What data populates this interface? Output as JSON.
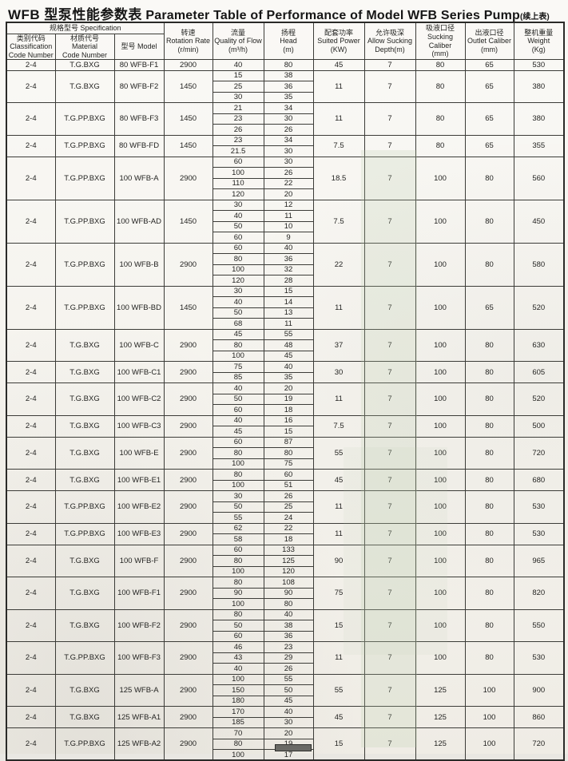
{
  "title": {
    "cn": "WFB 型泵性能参数表",
    "en": "Parameter Table of Performance of Model WFB Series Pump",
    "suffix": "(续上表)"
  },
  "table": {
    "spec_group": {
      "cn": "规格型号",
      "en": "Specification"
    },
    "columns": [
      {
        "lines": [
          "类别代码",
          "Classification",
          "Code Number"
        ]
      },
      {
        "lines": [
          "材质代号",
          "Material",
          "Code Number"
        ]
      },
      {
        "lines": [
          "型号 Model"
        ]
      },
      {
        "lines": [
          "转速",
          "Rotation Rate",
          "(r/min)"
        ]
      },
      {
        "lines": [
          "流量",
          "Quality of Flow",
          "(m³/h)"
        ]
      },
      {
        "lines": [
          "扬程",
          "Head",
          "(m)"
        ]
      },
      {
        "lines": [
          "配套功率",
          "Suited Power",
          "(KW)"
        ]
      },
      {
        "lines": [
          "允许吸深",
          "Allow Sucking",
          "Depth(m)"
        ]
      },
      {
        "lines": [
          "吸液口径",
          "Sucking Caliber",
          "(mm)"
        ]
      },
      {
        "lines": [
          "出液口径",
          "Outlet Caliber",
          "(mm)"
        ]
      },
      {
        "lines": [
          "整机重量",
          "Weight",
          "(Kg)"
        ]
      }
    ],
    "rows": [
      {
        "cls": "2-4",
        "mat": "T.G.BXG",
        "model": "80 WFB-F1",
        "rpm": "2900",
        "points": [
          [
            "40",
            "80"
          ]
        ],
        "kw": "45",
        "depth": "7",
        "suck": "80",
        "outlet": "65",
        "kg": "530"
      },
      {
        "cls": "2-4",
        "mat": "T.G.BXG",
        "model": "80 WFB-F2",
        "rpm": "1450",
        "points": [
          [
            "15",
            "38"
          ],
          [
            "25",
            "36"
          ],
          [
            "30",
            "35"
          ]
        ],
        "kw": "11",
        "depth": "7",
        "suck": "80",
        "outlet": "65",
        "kg": "380"
      },
      {
        "cls": "2-4",
        "mat": "T.G.PP.BXG",
        "model": "80 WFB-F3",
        "rpm": "1450",
        "points": [
          [
            "21",
            "34"
          ],
          [
            "23",
            "30"
          ],
          [
            "26",
            "26"
          ]
        ],
        "kw": "11",
        "depth": "7",
        "suck": "80",
        "outlet": "65",
        "kg": "380"
      },
      {
        "cls": "2-4",
        "mat": "T.G.PP.BXG",
        "model": "80 WFB-FD",
        "rpm": "1450",
        "points": [
          [
            "23",
            "34"
          ],
          [
            "21.5",
            "30"
          ]
        ],
        "kw": "7.5",
        "depth": "7",
        "suck": "80",
        "outlet": "65",
        "kg": "355"
      },
      {
        "cls": "2-4",
        "mat": "T.G.PP.BXG",
        "model": "100 WFB-A",
        "rpm": "2900",
        "points": [
          [
            "60",
            "30"
          ],
          [
            "100",
            "26"
          ],
          [
            "110",
            "22"
          ],
          [
            "120",
            "20"
          ]
        ],
        "kw": "18.5",
        "depth": "7",
        "suck": "100",
        "outlet": "80",
        "kg": "560"
      },
      {
        "cls": "2-4",
        "mat": "T.G.PP.BXG",
        "model": "100 WFB-AD",
        "rpm": "1450",
        "points": [
          [
            "30",
            "12"
          ],
          [
            "40",
            "11"
          ],
          [
            "50",
            "10"
          ],
          [
            "60",
            "9"
          ]
        ],
        "kw": "7.5",
        "depth": "7",
        "suck": "100",
        "outlet": "80",
        "kg": "450"
      },
      {
        "cls": "2-4",
        "mat": "T.G.PP.BXG",
        "model": "100 WFB-B",
        "rpm": "2900",
        "points": [
          [
            "60",
            "40"
          ],
          [
            "80",
            "36"
          ],
          [
            "100",
            "32"
          ],
          [
            "120",
            "28"
          ]
        ],
        "kw": "22",
        "depth": "7",
        "suck": "100",
        "outlet": "80",
        "kg": "580"
      },
      {
        "cls": "2-4",
        "mat": "T.G.PP.BXG",
        "model": "100 WFB-BD",
        "rpm": "1450",
        "points": [
          [
            "30",
            "15"
          ],
          [
            "40",
            "14"
          ],
          [
            "50",
            "13"
          ],
          [
            "68",
            "11"
          ]
        ],
        "kw": "11",
        "depth": "7",
        "suck": "100",
        "outlet": "65",
        "kg": "520"
      },
      {
        "cls": "2-4",
        "mat": "T.G.BXG",
        "model": "100 WFB-C",
        "rpm": "2900",
        "points": [
          [
            "45",
            "55"
          ],
          [
            "80",
            "48"
          ],
          [
            "100",
            "45"
          ]
        ],
        "kw": "37",
        "depth": "7",
        "suck": "100",
        "outlet": "80",
        "kg": "630"
      },
      {
        "cls": "2-4",
        "mat": "T.G.BXG",
        "model": "100 WFB-C1",
        "rpm": "2900",
        "points": [
          [
            "75",
            "40"
          ],
          [
            "85",
            "35"
          ]
        ],
        "kw": "30",
        "depth": "7",
        "suck": "100",
        "outlet": "80",
        "kg": "605"
      },
      {
        "cls": "2-4",
        "mat": "T.G.BXG",
        "model": "100 WFB-C2",
        "rpm": "2900",
        "points": [
          [
            "40",
            "20"
          ],
          [
            "50",
            "19"
          ],
          [
            "60",
            "18"
          ]
        ],
        "kw": "11",
        "depth": "7",
        "suck": "100",
        "outlet": "80",
        "kg": "520"
      },
      {
        "cls": "2-4",
        "mat": "T.G.BXG",
        "model": "100 WFB-C3",
        "rpm": "2900",
        "points": [
          [
            "40",
            "16"
          ],
          [
            "45",
            "15"
          ]
        ],
        "kw": "7.5",
        "depth": "7",
        "suck": "100",
        "outlet": "80",
        "kg": "500"
      },
      {
        "cls": "2-4",
        "mat": "T.G.BXG",
        "model": "100 WFB-E",
        "rpm": "2900",
        "points": [
          [
            "60",
            "87"
          ],
          [
            "80",
            "80"
          ],
          [
            "100",
            "75"
          ]
        ],
        "kw": "55",
        "depth": "7",
        "suck": "100",
        "outlet": "80",
        "kg": "720"
      },
      {
        "cls": "2-4",
        "mat": "T.G.BXG",
        "model": "100 WFB-E1",
        "rpm": "2900",
        "points": [
          [
            "80",
            "60"
          ],
          [
            "100",
            "51"
          ]
        ],
        "kw": "45",
        "depth": "7",
        "suck": "100",
        "outlet": "80",
        "kg": "680"
      },
      {
        "cls": "2-4",
        "mat": "T.G.PP.BXG",
        "model": "100 WFB-E2",
        "rpm": "2900",
        "points": [
          [
            "30",
            "26"
          ],
          [
            "50",
            "25"
          ],
          [
            "55",
            "24"
          ]
        ],
        "kw": "11",
        "depth": "7",
        "suck": "100",
        "outlet": "80",
        "kg": "530"
      },
      {
        "cls": "2-4",
        "mat": "T.G.PP.BXG",
        "model": "100 WFB-E3",
        "rpm": "2900",
        "points": [
          [
            "62",
            "22"
          ],
          [
            "58",
            "18"
          ]
        ],
        "kw": "11",
        "depth": "7",
        "suck": "100",
        "outlet": "80",
        "kg": "530"
      },
      {
        "cls": "2-4",
        "mat": "T.G.BXG",
        "model": "100 WFB-F",
        "rpm": "2900",
        "points": [
          [
            "60",
            "133"
          ],
          [
            "80",
            "125"
          ],
          [
            "100",
            "120"
          ]
        ],
        "kw": "90",
        "depth": "7",
        "suck": "100",
        "outlet": "80",
        "kg": "965"
      },
      {
        "cls": "2-4",
        "mat": "T.G.BXG",
        "model": "100 WFB-F1",
        "rpm": "2900",
        "points": [
          [
            "80",
            "108"
          ],
          [
            "90",
            "90"
          ],
          [
            "100",
            "80"
          ]
        ],
        "kw": "75",
        "depth": "7",
        "suck": "100",
        "outlet": "80",
        "kg": "820"
      },
      {
        "cls": "2-4",
        "mat": "T.G.BXG",
        "model": "100 WFB-F2",
        "rpm": "2900",
        "points": [
          [
            "80",
            "40"
          ],
          [
            "50",
            "38"
          ],
          [
            "60",
            "36"
          ]
        ],
        "kw": "15",
        "depth": "7",
        "suck": "100",
        "outlet": "80",
        "kg": "550"
      },
      {
        "cls": "2-4",
        "mat": "T.G.PP.BXG",
        "model": "100 WFB-F3",
        "rpm": "2900",
        "points": [
          [
            "46",
            "23"
          ],
          [
            "43",
            "29"
          ],
          [
            "40",
            "26"
          ]
        ],
        "kw": "11",
        "depth": "7",
        "suck": "100",
        "outlet": "80",
        "kg": "530"
      },
      {
        "cls": "2-4",
        "mat": "T.G.BXG",
        "model": "125 WFB-A",
        "rpm": "2900",
        "points": [
          [
            "100",
            "55"
          ],
          [
            "150",
            "50"
          ],
          [
            "180",
            "45"
          ]
        ],
        "kw": "55",
        "depth": "7",
        "suck": "125",
        "outlet": "100",
        "kg": "900"
      },
      {
        "cls": "2-4",
        "mat": "T.G.BXG",
        "model": "125 WFB-A1",
        "rpm": "2900",
        "points": [
          [
            "170",
            "40"
          ],
          [
            "185",
            "30"
          ]
        ],
        "kw": "45",
        "depth": "7",
        "suck": "125",
        "outlet": "100",
        "kg": "860"
      },
      {
        "cls": "2-4",
        "mat": "T.G.PP.BXG",
        "model": "125 WFB-A2",
        "rpm": "2900",
        "points": [
          [
            "70",
            "20"
          ],
          [
            "80",
            "19"
          ],
          [
            "100",
            "17"
          ]
        ],
        "kw": "15",
        "depth": "7",
        "suck": "125",
        "outlet": "100",
        "kg": "720"
      }
    ]
  }
}
